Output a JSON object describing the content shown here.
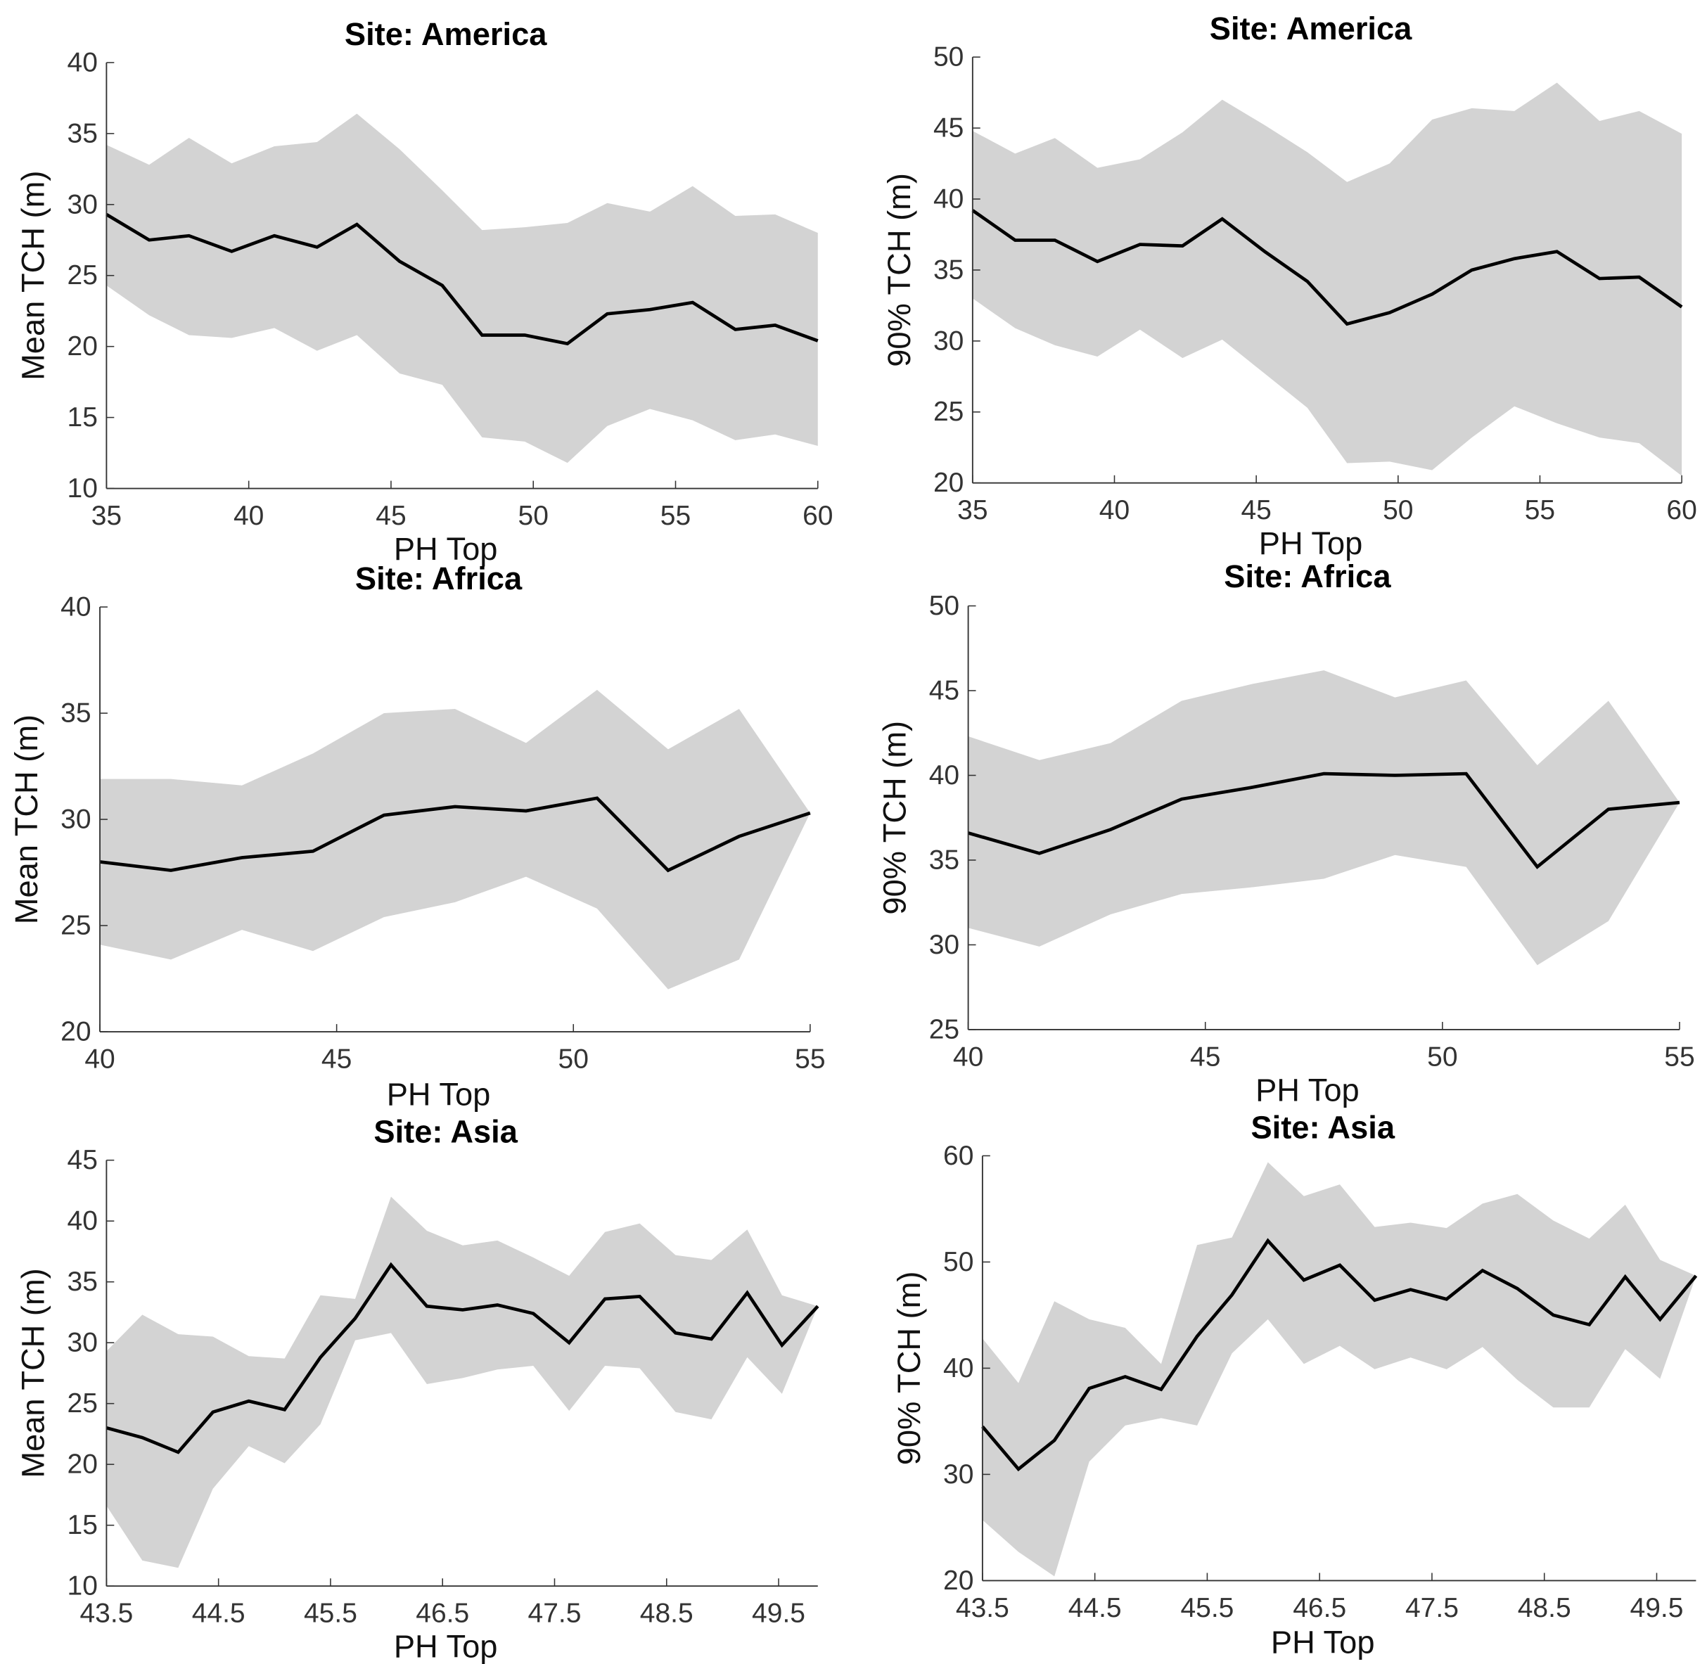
{
  "chart_data": [
    {
      "type": "line",
      "title": "Site: America",
      "xlabel": "PH Top",
      "ylabel": "Mean TCH (m)",
      "color": "#000000",
      "band_color": "#d3d3d3",
      "x": [
        35,
        36.5,
        37.9,
        39.4,
        40.9,
        42.4,
        43.8,
        45.3,
        46.8,
        48.2,
        49.7,
        51.2,
        52.6,
        54.1,
        55.6,
        57.1,
        58.5,
        60
      ],
      "values": [
        29.3,
        27.5,
        27.8,
        26.7,
        27.8,
        27,
        28.6,
        26,
        24.3,
        20.8,
        20.8,
        20.2,
        22.3,
        22.6,
        23.1,
        21.2,
        21.5,
        20.4
      ],
      "upper": [
        34.2,
        32.8,
        34.7,
        32.9,
        34.1,
        34.4,
        36.4,
        33.9,
        31,
        28.2,
        28.4,
        28.7,
        30.1,
        29.5,
        31.3,
        29.2,
        29.3,
        28
      ],
      "lower": [
        24.3,
        22.2,
        20.8,
        20.6,
        21.3,
        19.7,
        20.8,
        18.1,
        17.3,
        13.6,
        13.3,
        11.8,
        14.4,
        15.6,
        14.8,
        13.4,
        13.8,
        13
      ],
      "xlim": [
        35,
        60
      ],
      "xticks": [
        35,
        40,
        45,
        50,
        55,
        60
      ],
      "ylim": [
        10,
        40
      ],
      "yticks": [
        10,
        15,
        20,
        25,
        30,
        35,
        40
      ]
    },
    {
      "type": "line",
      "title": "Site: America",
      "xlabel": "PH Top",
      "ylabel": "90% TCH (m)",
      "color": "#000000",
      "band_color": "#d3d3d3",
      "x": [
        35,
        36.5,
        37.9,
        39.4,
        40.9,
        42.4,
        43.8,
        45.3,
        46.8,
        48.2,
        49.7,
        51.2,
        52.6,
        54.1,
        55.6,
        57.1,
        58.5,
        60
      ],
      "values": [
        39.2,
        37.1,
        37.1,
        35.6,
        36.8,
        36.7,
        38.6,
        36.3,
        34.2,
        31.2,
        32,
        33.3,
        35,
        35.8,
        36.3,
        34.4,
        34.5,
        32.4
      ],
      "upper": [
        44.8,
        43.2,
        44.3,
        42.2,
        42.8,
        44.7,
        47,
        45.2,
        43.3,
        41.2,
        42.5,
        45.6,
        46.4,
        46.2,
        48.2,
        45.5,
        46.2,
        44.6
      ],
      "lower": [
        33,
        30.9,
        29.7,
        28.9,
        30.8,
        28.8,
        30.1,
        27.7,
        25.3,
        21.4,
        21.5,
        20.9,
        23.2,
        25.4,
        24.2,
        23.2,
        22.8,
        20.5
      ],
      "xlim": [
        35,
        60
      ],
      "xticks": [
        35,
        40,
        45,
        50,
        55,
        60
      ],
      "ylim": [
        20,
        50
      ],
      "yticks": [
        20,
        25,
        30,
        35,
        40,
        45,
        50
      ]
    },
    {
      "type": "line",
      "title": "Site: Africa",
      "xlabel": "PH Top",
      "ylabel": "Mean TCH (m)",
      "color": "#000000",
      "band_color": "#d3d3d3",
      "x": [
        40,
        41.5,
        43,
        44.5,
        46,
        47.5,
        49,
        50.5,
        52,
        53.5,
        55
      ],
      "values": [
        28,
        27.6,
        28.2,
        28.5,
        30.2,
        30.6,
        30.4,
        31,
        27.6,
        29.2,
        30.3
      ],
      "upper": [
        31.9,
        31.9,
        31.6,
        33.1,
        35,
        35.2,
        33.6,
        36.1,
        33.3,
        35.2,
        30.3
      ],
      "lower": [
        24.1,
        23.4,
        24.8,
        23.8,
        25.4,
        26.1,
        27.3,
        25.8,
        22,
        23.4,
        30.3
      ],
      "xlim": [
        40,
        55
      ],
      "xticks": [
        40,
        45,
        50,
        55
      ],
      "ylim": [
        20,
        40
      ],
      "yticks": [
        20,
        25,
        30,
        35,
        40
      ]
    },
    {
      "type": "line",
      "title": "Site: Africa",
      "xlabel": "PH Top",
      "ylabel": "90% TCH (m)",
      "color": "#000000",
      "band_color": "#d3d3d3",
      "x": [
        40,
        41.5,
        43,
        44.5,
        46,
        47.5,
        49,
        50.5,
        52,
        53.5,
        55
      ],
      "values": [
        36.6,
        35.4,
        36.8,
        38.6,
        39.3,
        40.1,
        40,
        40.1,
        34.6,
        38,
        38.4
      ],
      "upper": [
        42.3,
        40.9,
        41.9,
        44.4,
        45.4,
        46.2,
        44.6,
        45.6,
        40.6,
        44.4,
        38.4
      ],
      "lower": [
        31,
        29.9,
        31.8,
        33,
        33.4,
        33.9,
        35.3,
        34.6,
        28.8,
        31.4,
        38.4
      ],
      "xlim": [
        40,
        55
      ],
      "xticks": [
        40,
        45,
        50,
        55
      ],
      "ylim": [
        25,
        50
      ],
      "yticks": [
        25,
        30,
        35,
        40,
        45,
        50
      ]
    },
    {
      "type": "line",
      "title": "Site: Asia",
      "xlabel": "PH Top",
      "ylabel": "Mean TCH (m)",
      "color": "#000000",
      "band_color": "#d3d3d3",
      "x": [
        43.5,
        43.82,
        44.14,
        44.45,
        44.77,
        45.09,
        45.41,
        45.72,
        46.04,
        46.36,
        46.68,
        46.99,
        47.31,
        47.63,
        47.95,
        48.26,
        48.58,
        48.9,
        49.22,
        49.53,
        49.85
      ],
      "values": [
        23,
        22.2,
        21,
        24.3,
        25.2,
        24.5,
        28.8,
        32,
        36.4,
        33,
        32.7,
        33.1,
        32.4,
        30,
        33.6,
        33.8,
        30.8,
        30.3,
        34.1,
        29.8,
        33
      ],
      "upper": [
        29.3,
        32.3,
        30.7,
        30.5,
        28.9,
        28.7,
        33.9,
        33.6,
        42,
        39.2,
        38,
        38.4,
        37,
        35.5,
        39.1,
        39.8,
        37.2,
        36.8,
        39.3,
        33.9,
        33
      ],
      "lower": [
        16.6,
        12.1,
        11.5,
        18,
        21.5,
        20.1,
        23.3,
        30.2,
        30.8,
        26.6,
        27.1,
        27.8,
        28.1,
        24.4,
        28.1,
        27.9,
        24.3,
        23.7,
        28.8,
        25.8,
        33
      ],
      "xlim": [
        43.5,
        49.85
      ],
      "xticks": [
        43.5,
        44.5,
        45.5,
        46.5,
        47.5,
        48.5,
        49.5
      ],
      "ylim": [
        10,
        45
      ],
      "yticks": [
        10,
        15,
        20,
        25,
        30,
        35,
        40,
        45
      ]
    },
    {
      "type": "line",
      "title": "Site: Asia",
      "xlabel": "PH Top",
      "ylabel": "90% TCH (m)",
      "color": "#000000",
      "band_color": "#d3d3d3",
      "x": [
        43.5,
        43.82,
        44.14,
        44.45,
        44.77,
        45.09,
        45.41,
        45.72,
        46.04,
        46.36,
        46.68,
        46.99,
        47.31,
        47.63,
        47.95,
        48.26,
        48.58,
        48.9,
        49.22,
        49.53,
        49.85
      ],
      "values": [
        34.5,
        30.5,
        33.2,
        38.1,
        39.2,
        38,
        43,
        46.9,
        52,
        48.3,
        49.7,
        46.4,
        47.4,
        46.5,
        49.2,
        47.5,
        45,
        44.1,
        48.6,
        44.6,
        48.7
      ],
      "upper": [
        42.8,
        38.6,
        46.3,
        44.6,
        43.8,
        40.4,
        51.6,
        52.3,
        59.4,
        56.2,
        57.3,
        53.3,
        53.7,
        53.2,
        55.5,
        56.4,
        53.9,
        52.2,
        55.4,
        50.2,
        48.7
      ],
      "lower": [
        25.7,
        22.7,
        20.4,
        31.2,
        34.6,
        35.3,
        34.6,
        41.4,
        44.6,
        40.4,
        42.1,
        39.9,
        41,
        39.9,
        42,
        38.9,
        36.3,
        36.3,
        41.8,
        39,
        48.7
      ],
      "xlim": [
        43.5,
        49.85
      ],
      "xticks": [
        43.5,
        44.5,
        45.5,
        46.5,
        47.5,
        48.5,
        49.5
      ],
      "ylim": [
        20,
        60
      ],
      "yticks": [
        20,
        30,
        40,
        50,
        60
      ]
    }
  ]
}
